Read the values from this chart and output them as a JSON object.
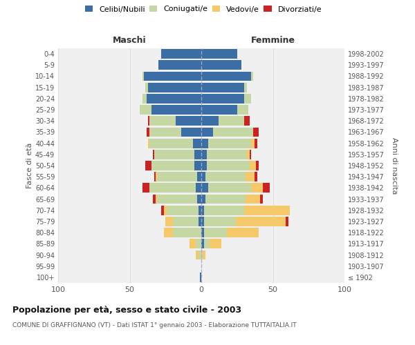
{
  "age_groups": [
    "100+",
    "95-99",
    "90-94",
    "85-89",
    "80-84",
    "75-79",
    "70-74",
    "65-69",
    "60-64",
    "55-59",
    "50-54",
    "45-49",
    "40-44",
    "35-39",
    "30-34",
    "25-29",
    "20-24",
    "15-19",
    "10-14",
    "5-9",
    "0-4"
  ],
  "birth_years": [
    "≤ 1902",
    "1903-1907",
    "1908-1912",
    "1913-1917",
    "1918-1922",
    "1923-1927",
    "1928-1932",
    "1933-1937",
    "1938-1942",
    "1943-1947",
    "1948-1952",
    "1953-1957",
    "1958-1962",
    "1963-1967",
    "1968-1972",
    "1973-1977",
    "1978-1982",
    "1983-1987",
    "1988-1992",
    "1993-1997",
    "1998-2002"
  ],
  "male": {
    "celibi": [
      1,
      0,
      0,
      0,
      0,
      2,
      2,
      3,
      4,
      3,
      5,
      5,
      6,
      14,
      18,
      35,
      38,
      37,
      40,
      30,
      28
    ],
    "coniugati": [
      0,
      0,
      2,
      4,
      20,
      18,
      22,
      28,
      32,
      28,
      30,
      28,
      30,
      22,
      18,
      8,
      3,
      2,
      1,
      0,
      0
    ],
    "vedovi": [
      0,
      0,
      2,
      4,
      6,
      5,
      2,
      1,
      0,
      1,
      0,
      0,
      1,
      0,
      0,
      0,
      0,
      0,
      0,
      0,
      0
    ],
    "divorziati": [
      0,
      0,
      0,
      0,
      0,
      0,
      2,
      2,
      5,
      1,
      4,
      1,
      0,
      2,
      1,
      0,
      0,
      0,
      0,
      0,
      0
    ]
  },
  "female": {
    "nubili": [
      0,
      0,
      0,
      2,
      2,
      2,
      2,
      3,
      5,
      3,
      4,
      4,
      5,
      8,
      12,
      25,
      30,
      30,
      35,
      28,
      25
    ],
    "coniugate": [
      0,
      0,
      1,
      4,
      16,
      22,
      28,
      28,
      30,
      28,
      30,
      28,
      30,
      28,
      18,
      8,
      5,
      2,
      1,
      0,
      0
    ],
    "vedove": [
      0,
      0,
      2,
      8,
      22,
      35,
      32,
      10,
      8,
      6,
      4,
      2,
      2,
      0,
      0,
      0,
      0,
      0,
      0,
      0,
      0
    ],
    "divorziate": [
      0,
      0,
      0,
      0,
      0,
      2,
      0,
      2,
      5,
      2,
      2,
      1,
      2,
      4,
      4,
      0,
      0,
      0,
      0,
      0,
      0
    ]
  },
  "colors": {
    "celibi": "#3a6ea5",
    "coniugati": "#c5d8a4",
    "vedovi": "#f5c96a",
    "divorziati": "#cc2222"
  },
  "title": "Popolazione per età, sesso e stato civile - 2003",
  "subtitle": "COMUNE DI GRAFFIGNANO (VT) - Dati ISTAT 1° gennaio 2003 - Elaborazione TUTTAITALIA.IT",
  "xlabel_left": "Maschi",
  "xlabel_right": "Femmine",
  "ylabel_left": "Fasce di età",
  "ylabel_right": "Anni di nascita",
  "xlim": 100,
  "bg_color": "#f0f0f0",
  "grid_color": "#dddddd"
}
